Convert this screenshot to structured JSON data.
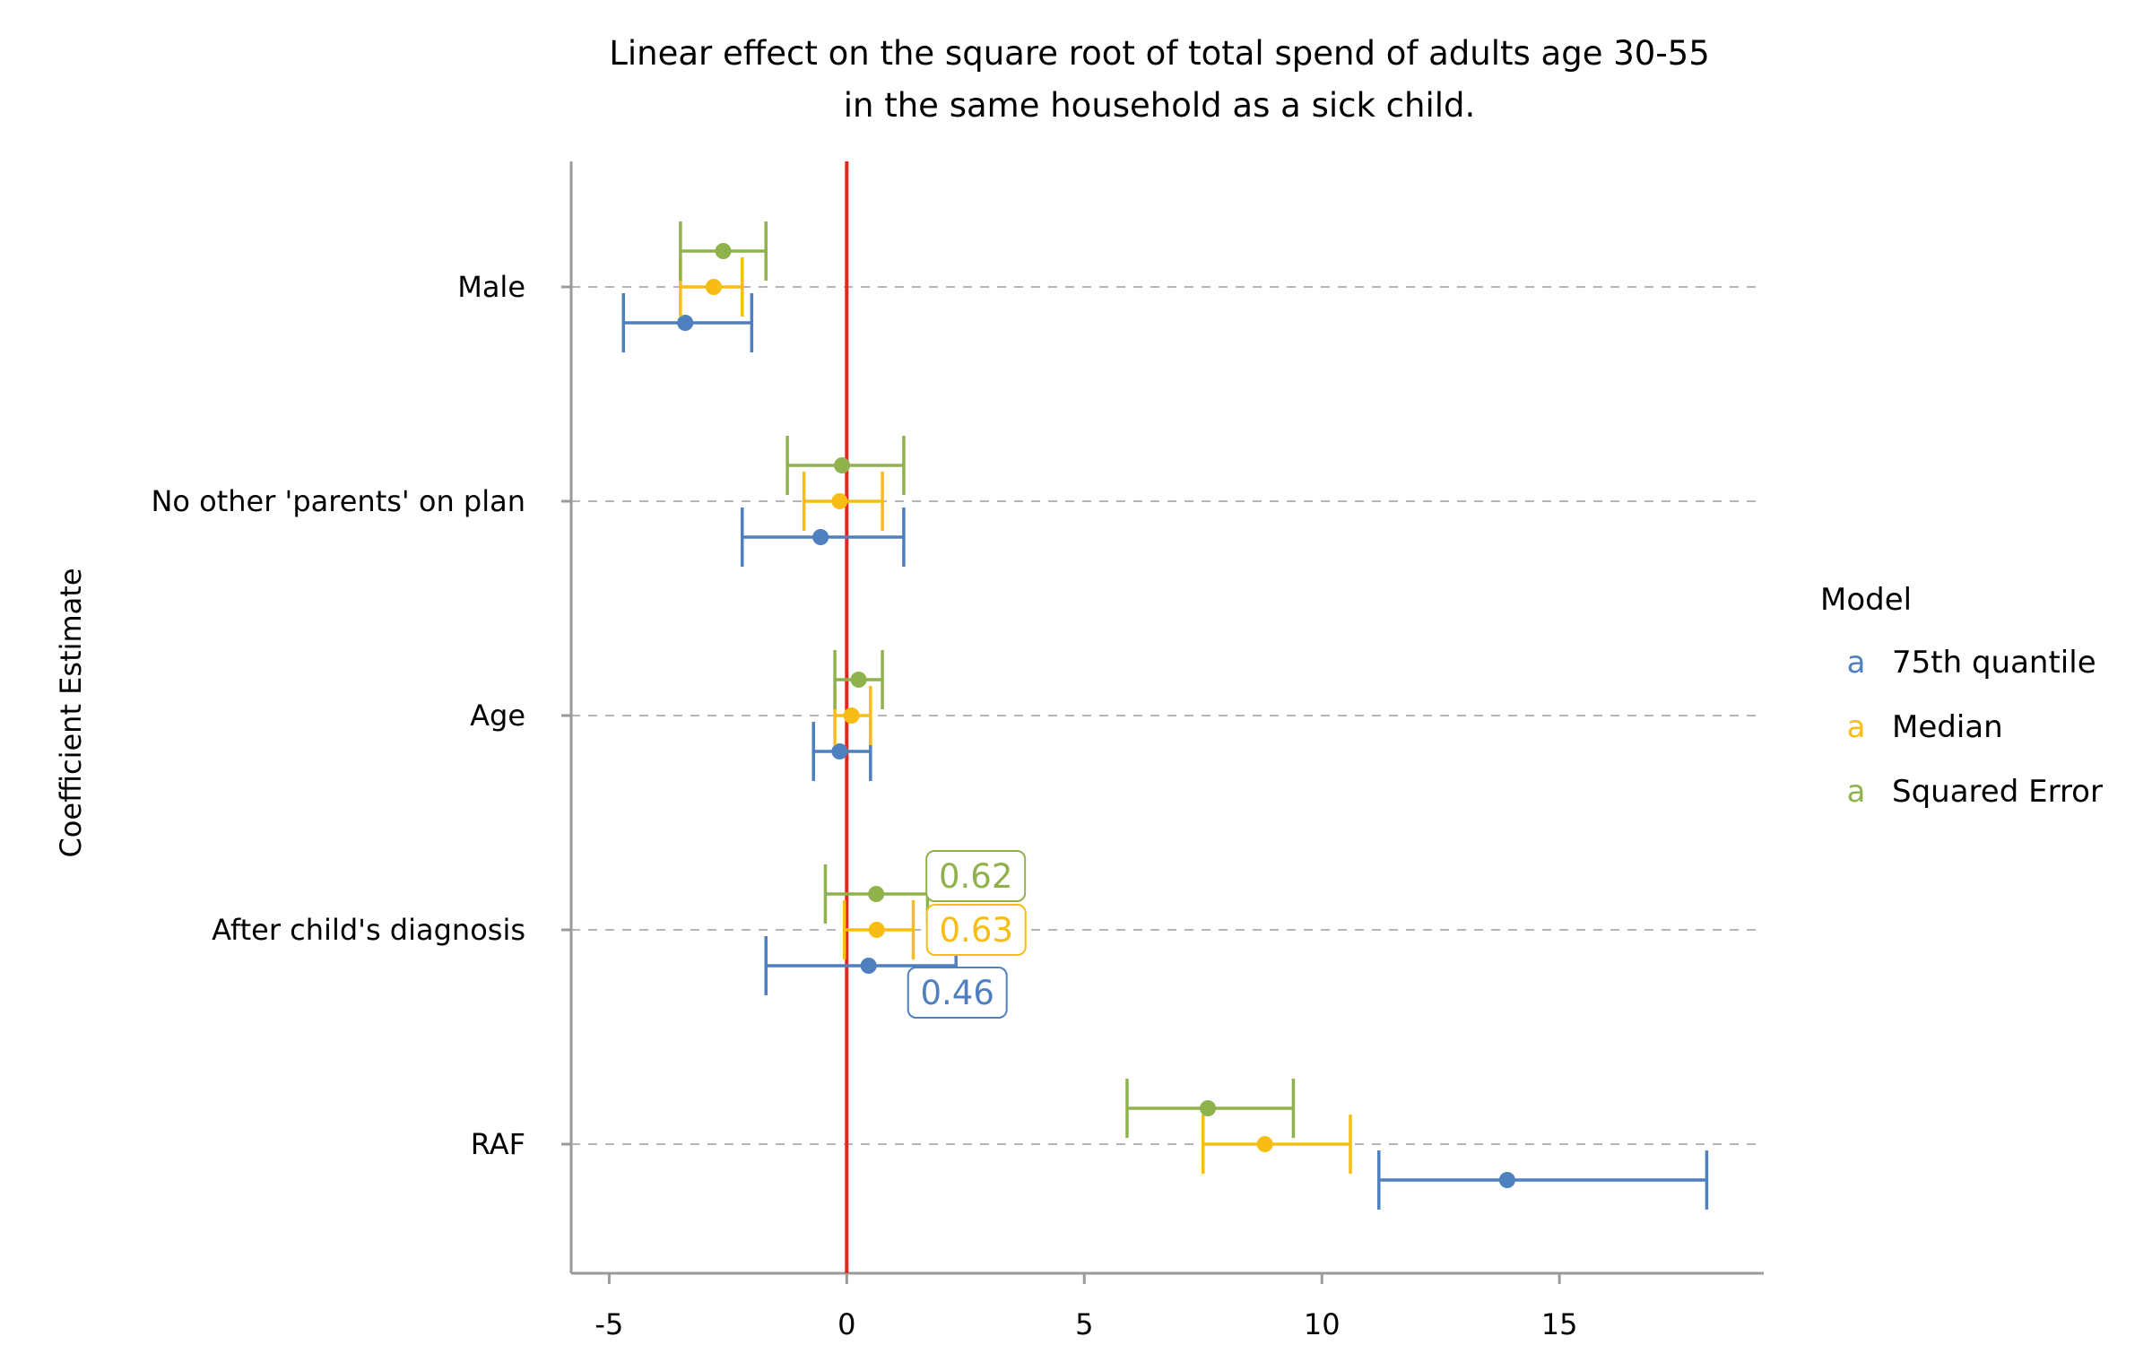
{
  "chart_data": {
    "type": "scatter",
    "title_lines": [
      "Linear effect on the square root of total spend of adults age 30-55",
      "in the same household as a sick child."
    ],
    "ylabel": "Coefficient Estimate",
    "xlabel": "",
    "categories": [
      "Male",
      "No other 'parents' on plan",
      "Age",
      "After child's diagnosis",
      "RAF"
    ],
    "xlim": [
      -5.8,
      19.3
    ],
    "x_ticks": [
      -5,
      0,
      5,
      10,
      15
    ],
    "x_tick_labels": [
      "-5",
      "0",
      "5",
      "10",
      "15"
    ],
    "reference_line": {
      "x": 0,
      "color": "#e8231f"
    },
    "grid": "dashed horizontal at categories",
    "legend": {
      "title": "Model",
      "position": "right",
      "key_glyph": "a"
    },
    "series": [
      {
        "name": "75th quantile",
        "color": "#4e7fbe",
        "points": [
          {
            "category": "Male",
            "estimate": -3.4,
            "low": -4.7,
            "high": -2.0
          },
          {
            "category": "No other 'parents' on plan",
            "estimate": -0.55,
            "low": -2.2,
            "high": 1.2
          },
          {
            "category": "Age",
            "estimate": -0.15,
            "low": -0.7,
            "high": 0.5
          },
          {
            "category": "After child's diagnosis",
            "estimate": 0.46,
            "low": -1.7,
            "high": 2.3
          },
          {
            "category": "RAF",
            "estimate": 13.9,
            "low": 11.2,
            "high": 18.1
          }
        ]
      },
      {
        "name": "Median",
        "color": "#f7bd14",
        "points": [
          {
            "category": "Male",
            "estimate": -2.8,
            "low": -3.5,
            "high": -2.2
          },
          {
            "category": "No other 'parents' on plan",
            "estimate": -0.15,
            "low": -0.9,
            "high": 0.75
          },
          {
            "category": "Age",
            "estimate": 0.1,
            "low": -0.25,
            "high": 0.5
          },
          {
            "category": "After child's diagnosis",
            "estimate": 0.63,
            "low": -0.05,
            "high": 1.4
          },
          {
            "category": "RAF",
            "estimate": 8.8,
            "low": 7.5,
            "high": 10.6
          }
        ]
      },
      {
        "name": "Squared Error",
        "color": "#8fb24c",
        "points": [
          {
            "category": "Male",
            "estimate": -2.6,
            "low": -3.5,
            "high": -1.7
          },
          {
            "category": "No other 'parents' on plan",
            "estimate": -0.1,
            "low": -1.25,
            "high": 1.2
          },
          {
            "category": "Age",
            "estimate": 0.25,
            "low": -0.25,
            "high": 0.75
          },
          {
            "category": "After child's diagnosis",
            "estimate": 0.62,
            "low": -0.45,
            "high": 1.7
          },
          {
            "category": "RAF",
            "estimate": 7.6,
            "low": 5.9,
            "high": 9.4
          }
        ]
      }
    ],
    "annotations": [
      {
        "series": "Squared Error",
        "category": "After child's diagnosis",
        "text": "0.62"
      },
      {
        "series": "Median",
        "category": "After child's diagnosis",
        "text": "0.63"
      },
      {
        "series": "75th quantile",
        "category": "After child's diagnosis",
        "text": "0.46"
      }
    ]
  }
}
